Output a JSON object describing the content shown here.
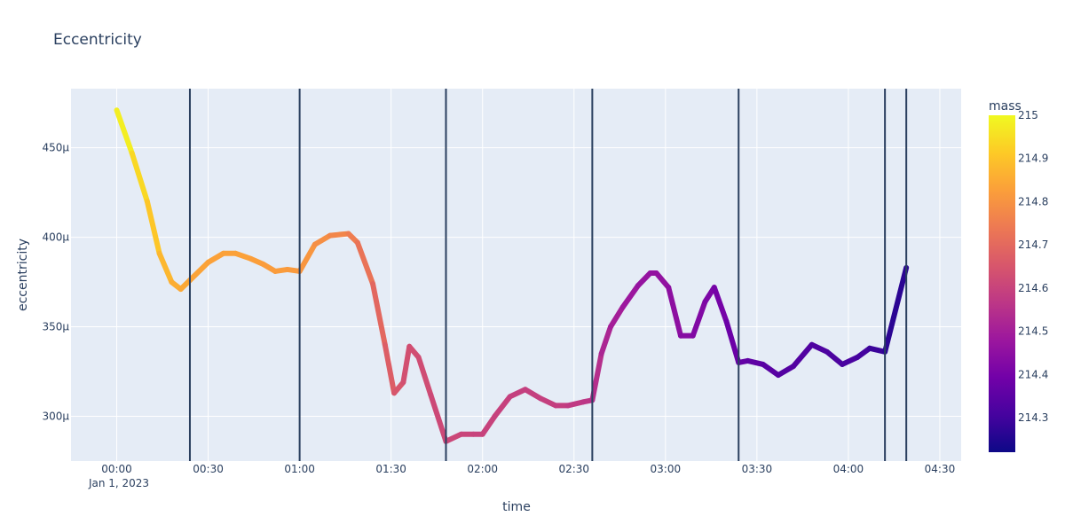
{
  "chart_data": {
    "type": "line",
    "title": "Eccentricity",
    "xlabel": "time",
    "ylabel": "eccentricity",
    "x_is_time": true,
    "xlim": [
      "2022-12-31T23:45",
      "2023-01-01T04:37"
    ],
    "ylim": [
      0.000275,
      0.000483
    ],
    "x_tick_labels": [
      "00:00",
      "00:30",
      "01:00",
      "01:30",
      "02:00",
      "02:30",
      "03:00",
      "03:30",
      "04:00",
      "04:30"
    ],
    "x_tick_sublabel": "Jan 1, 2023",
    "y_tick_labels": [
      "300µ",
      "350µ",
      "400µ",
      "450µ"
    ],
    "grid": true,
    "color_scale": {
      "title": "mass",
      "min": 214.22,
      "max": 215,
      "tick_labels": [
        "214.3",
        "214.4",
        "214.5",
        "214.6",
        "214.7",
        "214.8",
        "214.9",
        "215"
      ],
      "colors": [
        "#0d0887",
        "#46039f",
        "#7201a8",
        "#9c179e",
        "#bd3786",
        "#d8576b",
        "#ed7953",
        "#fb9f3a",
        "#fdca26",
        "#f0f921"
      ]
    },
    "vertical_lines_x": [
      "2023-01-01T00:24",
      "2023-01-01T01:00",
      "2023-01-01T01:48",
      "2023-01-01T02:36",
      "2023-01-01T03:24",
      "2023-01-01T04:12",
      "2023-01-01T04:19"
    ],
    "series": [
      {
        "x": [
          "2023-01-01T00:00",
          "2023-01-01T00:05",
          "2023-01-01T00:10",
          "2023-01-01T00:14",
          "2023-01-01T00:18",
          "2023-01-01T00:21",
          "2023-01-01T00:24",
          "2023-01-01T00:30",
          "2023-01-01T00:35",
          "2023-01-01T00:39",
          "2023-01-01T00:44",
          "2023-01-01T00:48",
          "2023-01-01T00:52",
          "2023-01-01T00:56",
          "2023-01-01T01:00",
          "2023-01-01T01:05",
          "2023-01-01T01:10",
          "2023-01-01T01:16",
          "2023-01-01T01:19",
          "2023-01-01T01:24",
          "2023-01-01T01:28",
          "2023-01-01T01:31",
          "2023-01-01T01:34",
          "2023-01-01T01:36",
          "2023-01-01T01:39",
          "2023-01-01T01:43",
          "2023-01-01T01:48",
          "2023-01-01T01:53",
          "2023-01-01T01:57",
          "2023-01-01T02:00",
          "2023-01-01T02:04",
          "2023-01-01T02:09",
          "2023-01-01T02:14",
          "2023-01-01T02:19",
          "2023-01-01T02:24",
          "2023-01-01T02:28",
          "2023-01-01T02:33",
          "2023-01-01T02:36",
          "2023-01-01T02:39",
          "2023-01-01T02:42",
          "2023-01-01T02:46",
          "2023-01-01T02:51",
          "2023-01-01T02:55",
          "2023-01-01T02:57",
          "2023-01-01T03:01",
          "2023-01-01T03:05",
          "2023-01-01T03:09",
          "2023-01-01T03:13",
          "2023-01-01T03:16",
          "2023-01-01T03:20",
          "2023-01-01T03:24",
          "2023-01-01T03:27",
          "2023-01-01T03:32",
          "2023-01-01T03:37",
          "2023-01-01T03:42",
          "2023-01-01T03:48",
          "2023-01-01T03:53",
          "2023-01-01T03:58",
          "2023-01-01T04:03",
          "2023-01-01T04:07",
          "2023-01-01T04:12",
          "2023-01-01T04:19"
        ],
        "y": [
          0.000471,
          0.000447,
          0.00042,
          0.000391,
          0.000375,
          0.000371,
          0.000376,
          0.000386,
          0.000391,
          0.000391,
          0.000388,
          0.000385,
          0.000381,
          0.000382,
          0.000381,
          0.000396,
          0.000401,
          0.000402,
          0.000397,
          0.000374,
          0.00034,
          0.000313,
          0.000319,
          0.000339,
          0.000333,
          0.000312,
          0.000286,
          0.00029,
          0.00029,
          0.00029,
          0.0003,
          0.000311,
          0.000315,
          0.00031,
          0.000306,
          0.000306,
          0.000308,
          0.000309,
          0.000335,
          0.00035,
          0.000361,
          0.000373,
          0.00038,
          0.00038,
          0.000372,
          0.000345,
          0.000345,
          0.000364,
          0.000372,
          0.000353,
          0.00033,
          0.000331,
          0.000329,
          0.000323,
          0.000328,
          0.00034,
          0.000336,
          0.000329,
          0.000333,
          0.000338,
          0.000336,
          0.000383
        ],
        "mass": [
          215.0,
          214.96,
          214.92,
          214.89,
          214.86,
          214.85,
          214.84,
          214.83,
          214.83,
          214.83,
          214.83,
          214.82,
          214.82,
          214.82,
          214.81,
          214.8,
          214.78,
          214.76,
          214.74,
          214.71,
          214.68,
          214.66,
          214.64,
          214.63,
          214.63,
          214.62,
          214.61,
          214.61,
          214.6,
          214.6,
          214.6,
          214.59,
          214.59,
          214.59,
          214.59,
          214.58,
          214.57,
          214.56,
          214.53,
          214.51,
          214.49,
          214.47,
          214.46,
          214.46,
          214.46,
          214.44,
          214.43,
          214.42,
          214.41,
          214.39,
          214.37,
          214.36,
          214.35,
          214.34,
          214.33,
          214.33,
          214.32,
          214.32,
          214.31,
          214.3,
          214.28,
          214.25
        ]
      }
    ]
  }
}
